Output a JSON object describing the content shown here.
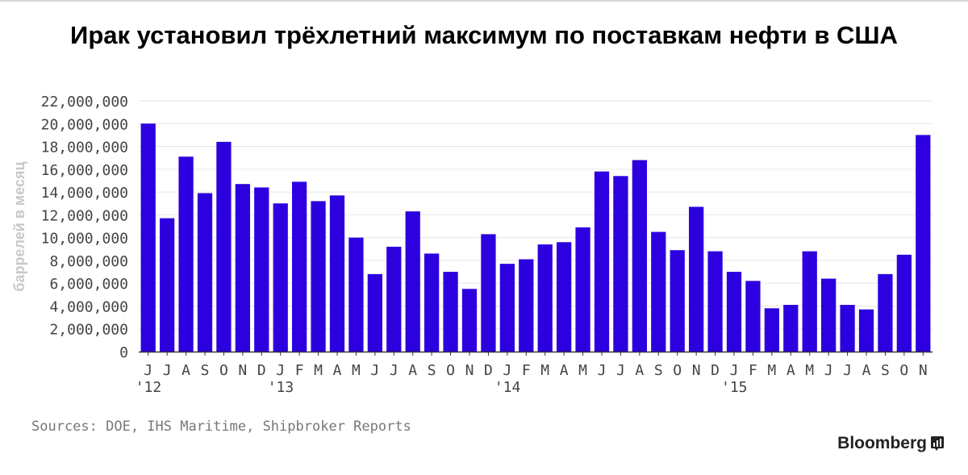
{
  "title": "Ирак установил трёхлетний максимум по поставкам нефти в США",
  "source": "Sources: DOE, IHS Maritime, Shipbroker Reports",
  "brand": "Bloomberg",
  "brand_icon": "bloomberg-terminal-icon",
  "colors": {
    "bar": "#2d00df",
    "grid": "#e6e6e6",
    "axis": "#333333",
    "tick_text": "#444444",
    "ylabel": "#c8c8c8"
  },
  "chart_data": {
    "type": "bar",
    "title": "Ирак установил трёхлетний максимум по поставкам нефти в США",
    "xlabel": "",
    "ylabel": "баррелей в месяц",
    "ylim": [
      0,
      22000000
    ],
    "yticks": [
      0,
      2000000,
      4000000,
      6000000,
      8000000,
      10000000,
      12000000,
      14000000,
      16000000,
      18000000,
      20000000,
      22000000
    ],
    "ytick_labels": [
      "0",
      "2,000,000",
      "4,000,000",
      "6,000,000",
      "8,000,000",
      "10,000,000",
      "12,000,000",
      "14,000,000",
      "16,000,000",
      "18,000,000",
      "20,000,000",
      "22,000,000"
    ],
    "grid": true,
    "legend": "none",
    "categories": [
      "J",
      "J",
      "A",
      "S",
      "O",
      "N",
      "D",
      "J",
      "F",
      "M",
      "A",
      "M",
      "J",
      "J",
      "A",
      "S",
      "O",
      "N",
      "D",
      "J",
      "F",
      "M",
      "A",
      "M",
      "J",
      "J",
      "A",
      "S",
      "O",
      "N",
      "D",
      "J",
      "F",
      "M",
      "A",
      "M",
      "J",
      "J",
      "A",
      "S",
      "O",
      "N"
    ],
    "year_labels": [
      {
        "index": 0,
        "label": "'12"
      },
      {
        "index": 7,
        "label": "'13"
      },
      {
        "index": 19,
        "label": "'14"
      },
      {
        "index": 31,
        "label": "'15"
      }
    ],
    "values": [
      20000000,
      11700000,
      17100000,
      13900000,
      18400000,
      14700000,
      14400000,
      13000000,
      14900000,
      13200000,
      13700000,
      10000000,
      6800000,
      9200000,
      12300000,
      8600000,
      7000000,
      5500000,
      10300000,
      7700000,
      8100000,
      9400000,
      9600000,
      10900000,
      15800000,
      15400000,
      16800000,
      10500000,
      8900000,
      12700000,
      8800000,
      7000000,
      6200000,
      3800000,
      4100000,
      8800000,
      6400000,
      4100000,
      3700000,
      6800000,
      8500000,
      19000000
    ]
  }
}
